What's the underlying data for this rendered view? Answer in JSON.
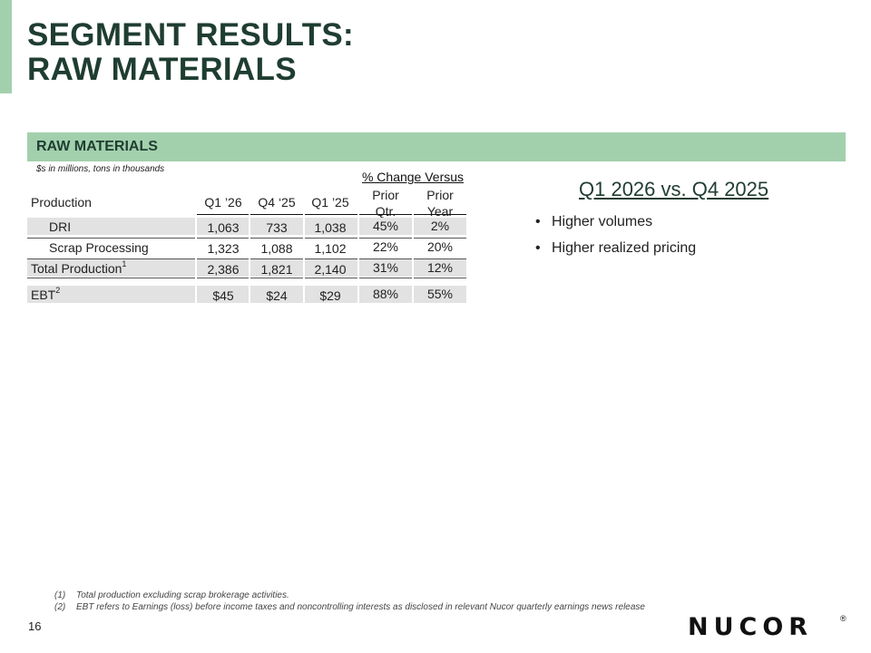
{
  "title": {
    "line1": "SEGMENT RESULTS:",
    "line2": "RAW MATERIALS"
  },
  "section": {
    "label": "RAW MATERIALS",
    "units_note": "$s in millions, tons in thousands"
  },
  "table": {
    "pct_group_header": "% Change Versus",
    "headers": {
      "production": "Production",
      "q1_26": "Q1 ’26",
      "q4_25": "Q4 ‘25",
      "q1_25": "Q1 ’25",
      "prior_qtr_1": "Prior",
      "prior_qtr_2": "Qtr.",
      "prior_year_1": "Prior",
      "prior_year_2": "Year"
    },
    "rows": [
      {
        "label": "DRI",
        "sup": "",
        "q1_26": "1,063",
        "q4_25": "733",
        "q1_25": "1,038",
        "pq": "45%",
        "py": "2%"
      },
      {
        "label": "Scrap Processing",
        "sup": "",
        "q1_26": "1,323",
        "q4_25": "1,088",
        "q1_25": "1,102",
        "pq": "22%",
        "py": "20%"
      },
      {
        "label": "Total Production",
        "sup": "1",
        "q1_26": "2,386",
        "q4_25": "1,821",
        "q1_25": "2,140",
        "pq": "31%",
        "py": "12%"
      },
      {
        "label": "EBT",
        "sup": "2",
        "q1_26": "$45",
        "q4_25": "$24",
        "q1_25": "$29",
        "pq": "88%",
        "py": "55%"
      }
    ]
  },
  "commentary": {
    "heading": "Q1 2026 vs. Q4 2025",
    "bullets": [
      "Higher volumes",
      "Higher realized pricing"
    ],
    "bullet_glyph": "•"
  },
  "footnotes": [
    {
      "num": "(1)",
      "text": "Total production excluding scrap brokerage activities."
    },
    {
      "num": "(2)",
      "text": "EBT refers to Earnings (loss) before income taxes and noncontrolling interests as disclosed in relevant Nucor quarterly earnings news release"
    }
  ],
  "page_number": "16",
  "logo": {
    "text": "NUCOR",
    "registered": "®"
  },
  "colors": {
    "accent_green": "#a2d0ad",
    "title_green": "#1f3d31",
    "row_gray": "#e2e2e2"
  }
}
